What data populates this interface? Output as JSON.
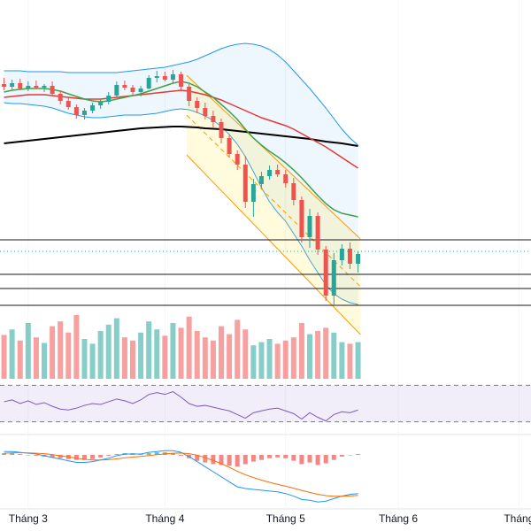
{
  "x_axis": {
    "xlim": [
      -0.5,
      65.5
    ],
    "xticks": [
      {
        "value": 3,
        "label": "Tháng 3"
      },
      {
        "value": 20,
        "label": "Tháng 4"
      },
      {
        "value": 35,
        "label": "Tháng 5"
      },
      {
        "value": 49,
        "label": "Tháng 6"
      },
      {
        "value": 64,
        "label": "Tháng"
      }
    ]
  },
  "chart_data": [
    {
      "type": "candlestick",
      "ylim": [
        0,
        35
      ],
      "up_color": "#26a69a",
      "down_color": "#ef5350",
      "ohlc": [
        [
          29.5,
          30.2,
          28.8,
          29.2
        ],
        [
          29.2,
          30,
          28.9,
          29.6
        ],
        [
          29.6,
          30.1,
          28.8,
          29.0
        ],
        [
          29.0,
          29.8,
          28.7,
          29.3
        ],
        [
          29.3,
          29.9,
          28.9,
          29.1
        ],
        [
          29.1,
          29.5,
          28.6,
          29.3
        ],
        [
          29.3,
          29.8,
          28.2,
          28.4
        ],
        [
          28.4,
          28.8,
          27.2,
          27.6
        ],
        [
          27.6,
          28.0,
          26.6,
          26.9
        ],
        [
          26.9,
          27.2,
          25.6,
          26.0
        ],
        [
          26.0,
          26.8,
          25.5,
          26.5
        ],
        [
          26.5,
          27.4,
          26.2,
          27.1
        ],
        [
          27.1,
          27.8,
          26.7,
          27.5
        ],
        [
          27.5,
          28.6,
          27.2,
          28.2
        ],
        [
          28.2,
          29.8,
          28.0,
          29.4
        ],
        [
          29.4,
          29.9,
          28.8,
          29.1
        ],
        [
          29.1,
          29.4,
          28.3,
          28.6
        ],
        [
          28.6,
          29.3,
          28.1,
          29.0
        ],
        [
          29.0,
          30.5,
          28.9,
          30.2
        ],
        [
          30.2,
          31.0,
          29.7,
          30.4
        ],
        [
          30.4,
          30.9,
          29.8,
          30.0
        ],
        [
          30.0,
          31.1,
          29.6,
          30.6
        ],
        [
          30.6,
          30.9,
          28.9,
          29.2
        ],
        [
          29.2,
          29.5,
          27.0,
          27.6
        ],
        [
          27.6,
          28.0,
          26.2,
          26.8
        ],
        [
          26.8,
          27.4,
          25.5,
          25.9
        ],
        [
          25.9,
          26.5,
          24.6,
          25.2
        ],
        [
          25.2,
          25.6,
          22.8,
          23.4
        ],
        [
          23.4,
          23.8,
          21.2,
          21.6
        ],
        [
          21.6,
          22.0,
          19.8,
          20.4
        ],
        [
          20.4,
          21.4,
          15.5,
          16.2
        ],
        [
          16.2,
          18.8,
          14.5,
          18.2
        ],
        [
          18.2,
          19.6,
          17.8,
          19.1
        ],
        [
          19.1,
          20.3,
          18.7,
          19.8
        ],
        [
          19.8,
          20.4,
          19.0,
          19.3
        ],
        [
          19.3,
          19.8,
          17.8,
          18.3
        ],
        [
          18.3,
          18.9,
          15.8,
          16.4
        ],
        [
          16.4,
          16.8,
          11.6,
          12.2
        ],
        [
          12.2,
          15.4,
          11.0,
          14.6
        ],
        [
          14.6,
          15.0,
          10.2,
          10.8
        ],
        [
          10.8,
          11.2,
          5.0,
          5.6
        ],
        [
          5.6,
          10.4,
          4.6,
          9.6
        ],
        [
          9.6,
          11.4,
          9.0,
          10.9
        ],
        [
          10.9,
          11.6,
          8.6,
          9.2
        ],
        [
          9.2,
          10.6,
          8.2,
          10.3
        ]
      ],
      "bands": {
        "color": "#2196f3",
        "upper": [
          31.0,
          31.0,
          31.0,
          30.9,
          30.9,
          30.9,
          30.9,
          30.9,
          30.8,
          30.8,
          30.8,
          30.8,
          30.8,
          30.8,
          30.8,
          30.9,
          31.0,
          31.1,
          31.2,
          31.3,
          31.4,
          31.6,
          31.8,
          32.0,
          32.3,
          32.7,
          33.1,
          33.5,
          33.8,
          34.0,
          34.1,
          34.0,
          33.8,
          33.4,
          32.8,
          32.0,
          31.0,
          30.0,
          29.0,
          27.9,
          26.8,
          25.6,
          24.4,
          23.4,
          22.6
        ],
        "lower": [
          27.4,
          27.3,
          27.3,
          27.2,
          27.1,
          27.0,
          26.8,
          26.5,
          26.2,
          26.0,
          25.8,
          25.7,
          25.7,
          25.8,
          25.9,
          26.0,
          26.0,
          26.0,
          26.1,
          26.2,
          26.4,
          26.6,
          26.7,
          26.6,
          26.3,
          25.9,
          25.4,
          24.7,
          23.8,
          22.7,
          21.3,
          19.6,
          17.8,
          16.2,
          15.0,
          14.0,
          12.6,
          11.2,
          9.6,
          8.2,
          6.8,
          5.8,
          5.2,
          4.8,
          4.6
        ]
      },
      "series": [
        {
          "color": "#000000",
          "values": [
            22.8,
            22.9,
            23.0,
            23.1,
            23.2,
            23.3,
            23.4,
            23.5,
            23.6,
            23.7,
            23.8,
            23.9,
            24.0,
            24.1,
            24.2,
            24.3,
            24.4,
            24.5,
            24.55,
            24.6,
            24.65,
            24.7,
            24.7,
            24.65,
            24.6,
            24.5,
            24.45,
            24.4,
            24.3,
            24.2,
            24.1,
            24.0,
            23.9,
            23.8,
            23.7,
            23.6,
            23.5,
            23.4,
            23.3,
            23.15,
            23.0,
            22.9,
            22.8,
            22.65,
            22.5
          ]
        },
        {
          "color": "#e53935",
          "values": [
            28.0,
            28.1,
            28.2,
            28.3,
            28.3,
            28.3,
            28.2,
            28.1,
            28.0,
            27.9,
            27.8,
            27.8,
            27.8,
            27.9,
            28.0,
            28.1,
            28.2,
            28.3,
            28.4,
            28.5,
            28.6,
            28.7,
            28.8,
            28.7,
            28.5,
            28.3,
            28.0,
            27.7,
            27.3,
            26.9,
            26.5,
            26.1,
            25.7,
            25.4,
            25.1,
            24.8,
            24.4,
            23.9,
            23.4,
            22.9,
            22.4,
            21.8,
            21.2,
            20.6,
            20.0
          ]
        },
        {
          "color": "#43a047",
          "values": [
            28.6,
            28.8,
            28.9,
            29.0,
            29.0,
            29.0,
            28.9,
            28.7,
            28.4,
            28.1,
            27.8,
            27.6,
            27.5,
            27.6,
            27.8,
            28.0,
            28.2,
            28.4,
            28.7,
            29.0,
            29.3,
            29.6,
            29.8,
            29.6,
            29.2,
            28.6,
            28.0,
            27.2,
            26.4,
            25.5,
            24.4,
            23.4,
            22.6,
            21.9,
            21.3,
            20.6,
            19.8,
            18.9,
            17.9,
            16.9,
            16.0,
            15.3,
            14.9,
            14.7,
            14.5
          ]
        }
      ],
      "levels": [
        11.9,
        8.0,
        6.4,
        4.5
      ],
      "dotted_levels": [
        10.6
      ],
      "channel": {
        "x": [
          22.7,
          44.3
        ],
        "upper": [
          30.5,
          12.0
        ],
        "lower": [
          21.5,
          1.2
        ]
      }
    },
    {
      "type": "bar",
      "ylim": [
        0,
        100
      ],
      "values": [
        55,
        62,
        48,
        70,
        52,
        45,
        66,
        72,
        58,
        80,
        50,
        44,
        60,
        68,
        76,
        52,
        48,
        58,
        72,
        62,
        54,
        70,
        64,
        78,
        60,
        52,
        48,
        66,
        56,
        74,
        62,
        42,
        46,
        50,
        44,
        48,
        52,
        70,
        56,
        60,
        64,
        58,
        46,
        44,
        46
      ]
    },
    {
      "type": "line",
      "ylim": [
        20,
        80
      ],
      "color": "#7e57c2",
      "levels": [
        70,
        30
      ],
      "values": [
        52,
        54,
        50,
        53,
        49,
        51,
        47,
        44,
        43,
        45,
        48,
        50,
        49,
        52,
        55,
        53,
        50,
        54,
        60,
        62,
        60,
        63,
        57,
        50,
        47,
        48,
        46,
        44,
        42,
        38,
        34,
        40,
        42,
        44,
        45,
        42,
        39,
        33,
        40,
        35,
        31,
        38,
        41,
        40,
        43
      ]
    },
    {
      "type": "macd",
      "ylim": [
        -3,
        1
      ],
      "histogram": [
        0.1,
        0.1,
        0.05,
        0.0,
        -0.05,
        -0.1,
        -0.15,
        -0.2,
        -0.25,
        -0.3,
        -0.3,
        -0.25,
        -0.15,
        -0.05,
        0.05,
        0.1,
        0.1,
        0.05,
        0.1,
        0.15,
        0.15,
        0.1,
        -0.05,
        -0.2,
        -0.35,
        -0.45,
        -0.55,
        -0.6,
        -0.65,
        -0.7,
        -0.55,
        -0.4,
        -0.3,
        -0.2,
        -0.15,
        -0.2,
        -0.35,
        -0.55,
        -0.45,
        -0.6,
        -0.5,
        -0.3,
        -0.1,
        0.0,
        0.05
      ],
      "series": [
        {
          "color": "#2196f3",
          "values": [
            0.2,
            0.2,
            0.15,
            0.1,
            0.05,
            -0.05,
            -0.15,
            -0.25,
            -0.35,
            -0.45,
            -0.45,
            -0.4,
            -0.3,
            -0.2,
            -0.05,
            0.05,
            0.05,
            0.05,
            0.15,
            0.2,
            0.25,
            0.25,
            0.15,
            -0.1,
            -0.4,
            -0.7,
            -1.0,
            -1.3,
            -1.6,
            -1.9,
            -2.0,
            -2.05,
            -2.1,
            -2.15,
            -2.2,
            -2.3,
            -2.45,
            -2.65,
            -2.7,
            -2.8,
            -2.75,
            -2.6,
            -2.45,
            -2.35,
            -2.3
          ]
        },
        {
          "color": "#ff6d00",
          "values": [
            0.1,
            0.12,
            0.13,
            0.12,
            0.1,
            0.07,
            0.02,
            -0.05,
            -0.12,
            -0.2,
            -0.26,
            -0.3,
            -0.3,
            -0.28,
            -0.24,
            -0.18,
            -0.13,
            -0.09,
            -0.04,
            0.01,
            0.06,
            0.1,
            0.11,
            0.07,
            -0.02,
            -0.16,
            -0.33,
            -0.52,
            -0.74,
            -0.97,
            -1.18,
            -1.35,
            -1.5,
            -1.63,
            -1.75,
            -1.86,
            -1.98,
            -2.11,
            -2.23,
            -2.34,
            -2.42,
            -2.46,
            -2.46,
            -2.44,
            -2.41
          ]
        }
      ]
    }
  ]
}
